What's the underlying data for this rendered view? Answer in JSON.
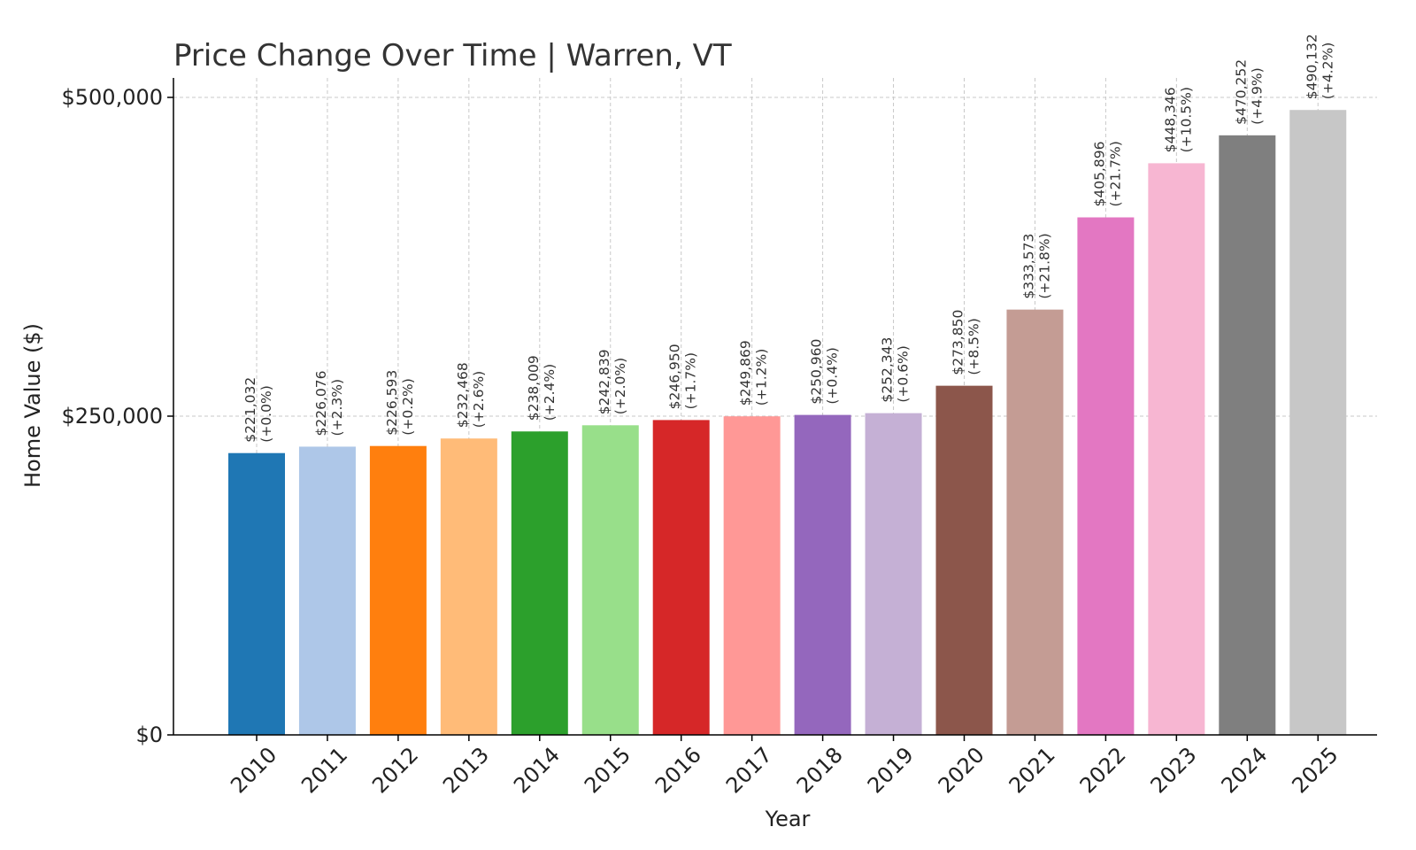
{
  "chart_data": {
    "type": "bar",
    "title": "Price Change Over Time | Warren, VT",
    "xlabel": "Year",
    "ylabel": "Home Value ($)",
    "ylim": [
      0,
      500000
    ],
    "yticks": [
      0,
      250000,
      500000
    ],
    "ytick_labels": [
      "$0",
      "$250,000",
      "$500,000"
    ],
    "grid": true,
    "categories": [
      "2010",
      "2011",
      "2012",
      "2013",
      "2014",
      "2015",
      "2016",
      "2017",
      "2018",
      "2019",
      "2020",
      "2021",
      "2022",
      "2023",
      "2024",
      "2025"
    ],
    "values": [
      221032,
      226076,
      226593,
      232468,
      238009,
      242839,
      246950,
      249869,
      250960,
      252343,
      273850,
      333573,
      405896,
      448346,
      470252,
      490132
    ],
    "value_labels": [
      "$221,032",
      "$226,076",
      "$226,593",
      "$232,468",
      "$238,009",
      "$242,839",
      "$246,950",
      "$249,869",
      "$250,960",
      "$252,343",
      "$273,850",
      "$333,573",
      "$405,896",
      "$448,346",
      "$470,252",
      "$490,132"
    ],
    "change_labels": [
      "(+0.0%)",
      "(+2.3%)",
      "(+0.2%)",
      "(+2.6%)",
      "(+2.4%)",
      "(+2.0%)",
      "(+1.7%)",
      "(+1.2%)",
      "(+0.4%)",
      "(+0.6%)",
      "(+8.5%)",
      "(+21.8%)",
      "(+21.7%)",
      "(+10.5%)",
      "(+4.9%)",
      "(+4.2%)"
    ],
    "colors": [
      "#1f77b4",
      "#aec7e8",
      "#ff7f0e",
      "#ffbb78",
      "#2ca02c",
      "#98df8a",
      "#d62728",
      "#ff9896",
      "#9467bd",
      "#c5b0d5",
      "#8c564b",
      "#c49c94",
      "#e377c2",
      "#f7b6d2",
      "#7f7f7f",
      "#c7c7c7"
    ]
  }
}
